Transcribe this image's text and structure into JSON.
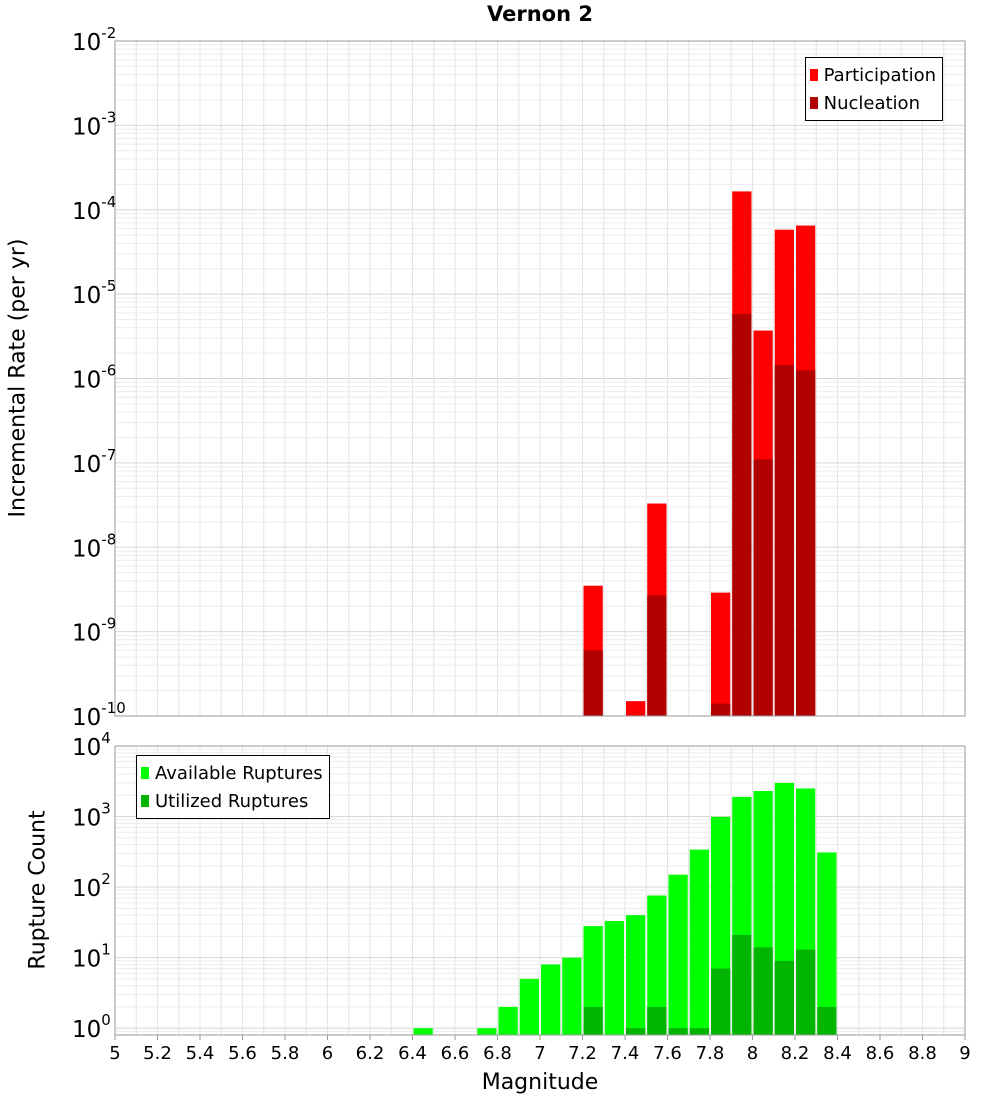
{
  "chart_data": [
    {
      "type": "bar",
      "title": "Vernon 2",
      "ylabel": "Incremental Rate (per yr)",
      "xlabel": "",
      "yscale": "log",
      "ylim": [
        1e-10,
        0.01
      ],
      "xlim": [
        5,
        9
      ],
      "bar_width": 0.1,
      "legend_position": "top-right",
      "series": [
        {
          "name": "Participation",
          "color": "#ff0000",
          "x": [
            7.25,
            7.45,
            7.55,
            7.85,
            7.95,
            8.05,
            8.15,
            8.25
          ],
          "values": [
            3.5e-09,
            1.5e-10,
            3.3e-08,
            2.9e-09,
            0.000165,
            3.7e-06,
            5.8e-05,
            6.5e-05
          ]
        },
        {
          "name": "Nucleation",
          "color": "#b00000",
          "x": [
            7.25,
            7.55,
            7.85,
            7.95,
            8.05,
            8.15,
            8.25
          ],
          "values": [
            6e-10,
            2.7e-09,
            1.4e-10,
            5.8e-06,
            1.1e-07,
            1.45e-06,
            1.25e-06
          ]
        }
      ]
    },
    {
      "type": "bar",
      "title": "",
      "ylabel": "Rupture Count",
      "xlabel": "Magnitude",
      "yscale": "log",
      "ylim": [
        0.8,
        10000
      ],
      "xlim": [
        5,
        9
      ],
      "bar_width": 0.1,
      "legend_position": "top-left",
      "series": [
        {
          "name": "Available Ruptures",
          "color": "#00ff00",
          "x": [
            6.45,
            6.75,
            6.85,
            6.95,
            7.05,
            7.15,
            7.25,
            7.35,
            7.45,
            7.55,
            7.65,
            7.75,
            7.85,
            7.95,
            8.05,
            8.15,
            8.25,
            8.35
          ],
          "values": [
            1,
            1,
            2,
            5,
            8,
            10,
            28,
            33,
            40,
            76,
            150,
            340,
            990,
            1900,
            2300,
            3000,
            2500,
            310
          ]
        },
        {
          "name": "Utilized Ruptures",
          "color": "#00b400",
          "x": [
            7.25,
            7.45,
            7.55,
            7.65,
            7.75,
            7.85,
            7.95,
            8.05,
            8.15,
            8.25,
            8.35
          ],
          "values": [
            2,
            1,
            2,
            1,
            1,
            7,
            21,
            14,
            9,
            13,
            2
          ]
        }
      ]
    }
  ],
  "xticks": [
    "5",
    "5.2",
    "5.4",
    "5.6",
    "5.8",
    "6",
    "6.2",
    "6.4",
    "6.6",
    "6.8",
    "7",
    "7.2",
    "7.4",
    "7.6",
    "7.8",
    "8",
    "8.2",
    "8.4",
    "8.6",
    "8.8",
    "9"
  ],
  "top_yticks": [
    {
      "base": "10",
      "exp": "-2"
    },
    {
      "base": "10",
      "exp": "-3"
    },
    {
      "base": "10",
      "exp": "-4"
    },
    {
      "base": "10",
      "exp": "-5"
    },
    {
      "base": "10",
      "exp": "-6"
    },
    {
      "base": "10",
      "exp": "-7"
    },
    {
      "base": "10",
      "exp": "-8"
    },
    {
      "base": "10",
      "exp": "-9"
    },
    {
      "base": "10",
      "exp": "-10"
    }
  ],
  "bottom_yticks": [
    {
      "base": "10",
      "exp": "4"
    },
    {
      "base": "10",
      "exp": "3"
    },
    {
      "base": "10",
      "exp": "2"
    },
    {
      "base": "10",
      "exp": "1"
    },
    {
      "base": "10",
      "exp": "0"
    }
  ]
}
